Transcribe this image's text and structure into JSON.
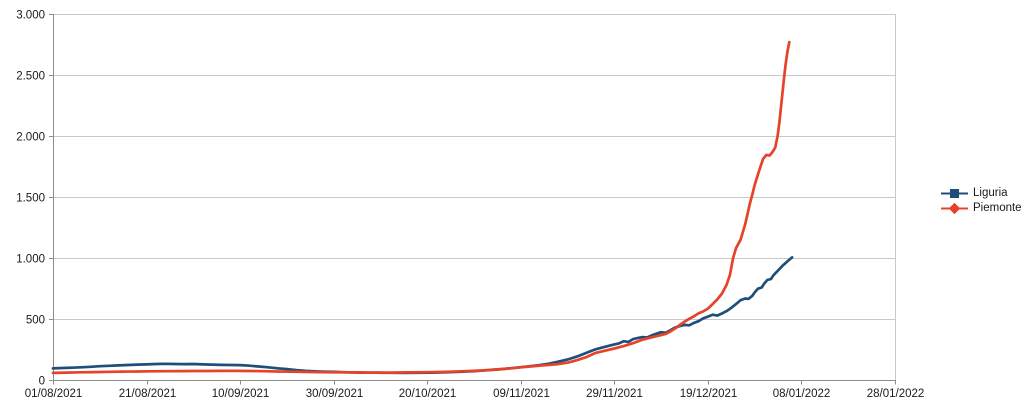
{
  "chart_data": {
    "type": "line",
    "title": "",
    "xlabel": "",
    "ylabel": "",
    "xlim": [
      0,
      180
    ],
    "ylim": [
      0,
      3000
    ],
    "grid": "horizontal",
    "legend_position": "right",
    "x_axis": {
      "tick_days": [
        0,
        20,
        40,
        60,
        80,
        100,
        120,
        140,
        160,
        180
      ],
      "tick_labels": [
        "01/08/2021",
        "21/08/2021",
        "10/09/2021",
        "30/09/2021",
        "20/10/2021",
        "09/11/2021",
        "29/11/2021",
        "19/12/2021",
        "08/01/2022",
        "28/01/2022"
      ]
    },
    "y_axis": {
      "tick_values": [
        0,
        500,
        1000,
        1500,
        2000,
        2500,
        3000
      ],
      "tick_labels": [
        "0",
        "500",
        "1.000",
        "1.500",
        "2.000",
        "2.500",
        "3.000"
      ]
    },
    "colors": {
      "gridline": "#c9c9c9",
      "plot_border": "#c9c9c9",
      "axis": "#8c8c8c",
      "text": "#1a1a1a",
      "background": "#ffffff"
    },
    "series": [
      {
        "name": "Liguria",
        "color": "#1f4e79",
        "marker": "square",
        "points": [
          [
            0,
            95
          ],
          [
            2,
            98
          ],
          [
            4,
            101
          ],
          [
            6,
            104
          ],
          [
            8,
            108
          ],
          [
            10,
            113
          ],
          [
            12,
            116
          ],
          [
            14,
            120
          ],
          [
            16,
            123
          ],
          [
            18,
            126
          ],
          [
            20,
            128
          ],
          [
            22,
            131
          ],
          [
            24,
            133
          ],
          [
            26,
            131
          ],
          [
            28,
            130
          ],
          [
            30,
            131
          ],
          [
            32,
            128
          ],
          [
            34,
            126
          ],
          [
            36,
            124
          ],
          [
            38,
            123
          ],
          [
            40,
            122
          ],
          [
            42,
            117
          ],
          [
            44,
            111
          ],
          [
            46,
            104
          ],
          [
            48,
            96
          ],
          [
            50,
            89
          ],
          [
            52,
            81
          ],
          [
            54,
            75
          ],
          [
            56,
            71
          ],
          [
            58,
            68
          ],
          [
            60,
            66
          ],
          [
            63,
            63
          ],
          [
            66,
            61
          ],
          [
            69,
            60
          ],
          [
            72,
            59
          ],
          [
            75,
            58
          ],
          [
            78,
            59
          ],
          [
            81,
            61
          ],
          [
            84,
            63
          ],
          [
            87,
            67
          ],
          [
            90,
            72
          ],
          [
            93,
            80
          ],
          [
            96,
            89
          ],
          [
            98,
            97
          ],
          [
            100,
            105
          ],
          [
            102,
            113
          ],
          [
            104,
            122
          ],
          [
            106,
            134
          ],
          [
            108,
            150
          ],
          [
            110,
            168
          ],
          [
            112,
            192
          ],
          [
            114,
            222
          ],
          [
            116,
            252
          ],
          [
            118,
            272
          ],
          [
            120,
            292
          ],
          [
            121,
            300
          ],
          [
            122,
            318
          ],
          [
            123,
            312
          ],
          [
            124,
            335
          ],
          [
            126,
            352
          ],
          [
            127,
            348
          ],
          [
            128,
            366
          ],
          [
            130,
            392
          ],
          [
            131,
            388
          ],
          [
            132,
            408
          ],
          [
            133,
            430
          ],
          [
            134,
            442
          ],
          [
            135,
            452
          ],
          [
            136,
            448
          ],
          [
            137,
            468
          ],
          [
            138,
            482
          ],
          [
            139,
            505
          ],
          [
            140,
            520
          ],
          [
            141,
            535
          ],
          [
            142,
            528
          ],
          [
            143,
            545
          ],
          [
            144,
            565
          ],
          [
            145,
            592
          ],
          [
            146,
            622
          ],
          [
            147,
            655
          ],
          [
            148,
            668
          ],
          [
            148.7,
            665
          ],
          [
            149.5,
            690
          ],
          [
            150,
            718
          ],
          [
            150.7,
            748
          ],
          [
            151.5,
            758
          ],
          [
            152,
            788
          ],
          [
            152.7,
            820
          ],
          [
            153.5,
            828
          ],
          [
            154,
            858
          ],
          [
            155,
            898
          ],
          [
            156,
            938
          ],
          [
            157,
            972
          ],
          [
            158,
            1005
          ]
        ]
      },
      {
        "name": "Piemonte",
        "color": "#e5432a",
        "marker": "diamond",
        "points": [
          [
            0,
            58
          ],
          [
            3,
            61
          ],
          [
            6,
            63
          ],
          [
            9,
            65
          ],
          [
            12,
            67
          ],
          [
            15,
            69
          ],
          [
            18,
            70
          ],
          [
            21,
            71
          ],
          [
            24,
            72
          ],
          [
            27,
            73
          ],
          [
            30,
            74
          ],
          [
            33,
            74
          ],
          [
            36,
            75
          ],
          [
            39,
            75
          ],
          [
            42,
            74
          ],
          [
            45,
            72
          ],
          [
            48,
            70
          ],
          [
            51,
            68
          ],
          [
            54,
            66
          ],
          [
            57,
            64
          ],
          [
            60,
            63
          ],
          [
            64,
            62
          ],
          [
            68,
            61
          ],
          [
            72,
            61
          ],
          [
            76,
            62
          ],
          [
            80,
            64
          ],
          [
            84,
            67
          ],
          [
            88,
            72
          ],
          [
            92,
            79
          ],
          [
            95,
            87
          ],
          [
            98,
            96
          ],
          [
            100,
            104
          ],
          [
            102,
            111
          ],
          [
            104,
            118
          ],
          [
            106,
            124
          ],
          [
            108,
            130
          ],
          [
            110,
            142
          ],
          [
            112,
            162
          ],
          [
            114,
            188
          ],
          [
            116,
            222
          ],
          [
            118,
            240
          ],
          [
            120,
            258
          ],
          [
            122,
            278
          ],
          [
            124,
            302
          ],
          [
            126,
            330
          ],
          [
            128,
            350
          ],
          [
            130,
            368
          ],
          [
            131,
            378
          ],
          [
            132,
            398
          ],
          [
            133,
            422
          ],
          [
            134,
            452
          ],
          [
            135,
            478
          ],
          [
            136,
            502
          ],
          [
            137,
            522
          ],
          [
            138,
            546
          ],
          [
            139,
            562
          ],
          [
            140,
            585
          ],
          [
            141,
            622
          ],
          [
            142,
            660
          ],
          [
            143,
            708
          ],
          [
            144,
            780
          ],
          [
            144.7,
            860
          ],
          [
            145.4,
            1000
          ],
          [
            146,
            1080
          ],
          [
            147,
            1150
          ],
          [
            148,
            1280
          ],
          [
            149,
            1450
          ],
          [
            149.5,
            1520
          ],
          [
            150,
            1600
          ],
          [
            151,
            1720
          ],
          [
            151.8,
            1812
          ],
          [
            152.5,
            1845
          ],
          [
            153.2,
            1840
          ],
          [
            153.8,
            1868
          ],
          [
            154.4,
            1905
          ],
          [
            154.9,
            2000
          ],
          [
            155.3,
            2120
          ],
          [
            155.8,
            2300
          ],
          [
            156.2,
            2450
          ],
          [
            156.6,
            2580
          ],
          [
            157,
            2690
          ],
          [
            157.4,
            2770
          ]
        ]
      }
    ]
  }
}
